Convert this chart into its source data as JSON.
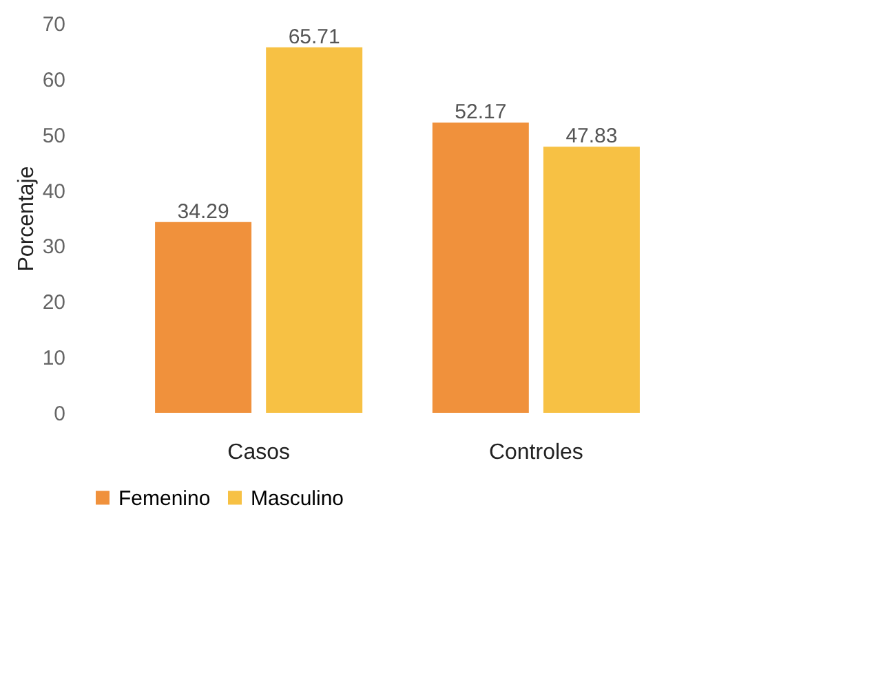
{
  "chart_data": {
    "type": "bar",
    "ylabel": "Porcentaje",
    "categories": [
      "Casos",
      "Controles"
    ],
    "series": [
      {
        "name": "Femenino",
        "color": "#f0913c",
        "values": [
          34.29,
          52.17
        ]
      },
      {
        "name": "Masculino",
        "color": "#f7c144",
        "values": [
          65.71,
          47.83
        ]
      }
    ],
    "ylim": [
      0,
      70
    ],
    "yticks": [
      0,
      10,
      20,
      30,
      40,
      50,
      60,
      70
    ],
    "grid": false,
    "legend": "bottom",
    "data_labels": true
  }
}
